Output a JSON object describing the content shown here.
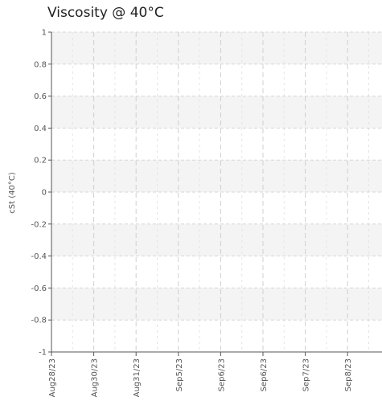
{
  "chart_data": {
    "type": "line",
    "title": "Viscosity @ 40°C",
    "ylabel": "cSt (40°C)",
    "xlabel": "",
    "ylim": [
      -1,
      1
    ],
    "yticks": [
      1,
      0.8,
      0.6,
      0.4,
      0.2,
      0,
      -0.2,
      -0.4,
      -0.6,
      -0.8,
      -1
    ],
    "categories": [
      "Aug28/23",
      "Aug30/23",
      "Aug31/23",
      "Sep5/23",
      "Sep6/23",
      "Sep6/23",
      "Sep7/23",
      "Sep8/23"
    ],
    "series": [],
    "grid": true,
    "legend": "none"
  }
}
